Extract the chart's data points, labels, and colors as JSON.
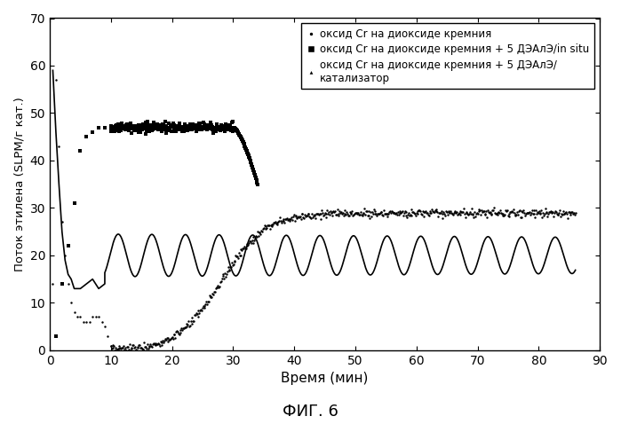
{
  "title": "ФИГ. 6",
  "xlabel": "Время (мин)",
  "ylabel": "Поток этилена (SLPM/г кат.)",
  "xlim": [
    0,
    90
  ],
  "ylim": [
    0,
    70
  ],
  "xticks": [
    0,
    10,
    20,
    30,
    40,
    50,
    60,
    70,
    80,
    90
  ],
  "yticks": [
    0,
    10,
    20,
    30,
    40,
    50,
    60,
    70
  ],
  "legend_labels": [
    "оксид Cr на диоксиде кремния",
    "оксид Cr на диоксиде кремния + 5 ДЭАлЭ/in situ",
    "оксид Cr на диоксиде кремния + 5 ДЭАлЭ/\nкатализатор"
  ],
  "bg_color": "#ffffff",
  "line_color": "#000000",
  "s1_marker": ".",
  "s2_marker": "s",
  "s3_marker": "^"
}
